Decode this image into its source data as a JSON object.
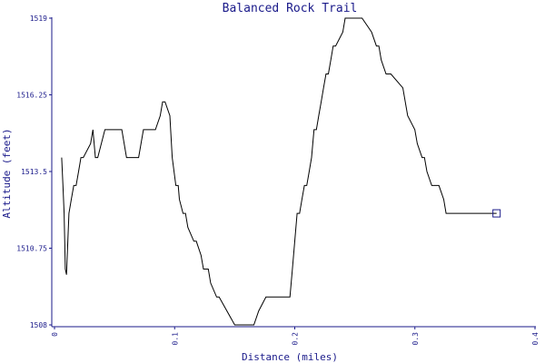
{
  "chart_data": {
    "type": "line",
    "title": "Balanced Rock Trail",
    "xlabel": "Distance (miles)",
    "ylabel": "Altitude (feet)",
    "xlim": [
      0,
      0.4
    ],
    "ylim": [
      1508,
      1519
    ],
    "x_ticks": [
      0,
      0.1,
      0.2,
      0.3,
      0.4
    ],
    "x_tick_labels": [
      "0",
      "0.1",
      "0.2",
      "0.3",
      "0.4"
    ],
    "y_ticks": [
      1508,
      1510.75,
      1513.5,
      1516.25,
      1519
    ],
    "y_tick_labels": [
      "1508",
      "1510.75",
      "1513.5",
      "1516.25",
      "1519"
    ],
    "grid": false,
    "line_color": "#000000",
    "axis_color": "#1a1a8a",
    "series": [
      {
        "x": [
          0.006,
          0.007,
          0.008,
          0.009,
          0.01,
          0.012,
          0.014,
          0.016,
          0.018,
          0.02,
          0.022,
          0.024,
          0.03,
          0.032,
          0.034,
          0.036,
          0.042,
          0.046,
          0.056,
          0.06,
          0.07,
          0.074,
          0.084,
          0.088,
          0.09,
          0.092,
          0.096,
          0.098,
          0.101,
          0.103,
          0.104,
          0.107,
          0.109,
          0.111,
          0.116,
          0.118,
          0.122,
          0.124,
          0.128,
          0.13,
          0.135,
          0.137,
          0.15,
          0.154,
          0.166,
          0.17,
          0.176,
          0.178,
          0.196,
          0.198,
          0.2,
          0.202,
          0.204,
          0.206,
          0.208,
          0.21,
          0.212,
          0.214,
          0.216,
          0.218,
          0.22,
          0.222,
          0.224,
          0.226,
          0.228,
          0.23,
          0.232,
          0.234,
          0.24,
          0.242,
          0.246,
          0.248,
          0.254,
          0.256,
          0.264,
          0.268,
          0.27,
          0.272,
          0.276,
          0.28,
          0.29,
          0.294,
          0.3,
          0.302,
          0.306,
          0.308,
          0.31,
          0.314,
          0.318,
          0.32,
          0.324,
          0.326,
          0.33,
          0.334,
          0.346,
          0.35,
          0.36,
          0.368
        ],
        "y": [
          1514,
          1513,
          1512,
          1510,
          1509.8,
          1512,
          1512.5,
          1513,
          1513,
          1513.5,
          1514,
          1514,
          1514.5,
          1515,
          1514,
          1514,
          1515,
          1515,
          1515,
          1514,
          1514,
          1515,
          1515,
          1515.5,
          1516,
          1516,
          1515.5,
          1514,
          1513,
          1513,
          1512.5,
          1512,
          1512,
          1511.5,
          1511,
          1511,
          1510.5,
          1510,
          1510,
          1509.5,
          1509,
          1509,
          1508,
          1508,
          1508,
          1508.5,
          1509,
          1509,
          1509,
          1510,
          1511,
          1512,
          1512,
          1512.5,
          1513,
          1513,
          1513.5,
          1514,
          1515,
          1515,
          1515.5,
          1516,
          1516.5,
          1517,
          1517,
          1517.5,
          1518,
          1518,
          1518.5,
          1519,
          1519,
          1519,
          1519,
          1519,
          1518.5,
          1518,
          1518,
          1517.5,
          1517,
          1517,
          1516.5,
          1515.5,
          1515,
          1514.5,
          1514,
          1514,
          1513.5,
          1513,
          1513,
          1513,
          1512.5,
          1512,
          1512,
          1512,
          1512,
          1512,
          1512,
          1512
        ]
      }
    ],
    "end_marker": {
      "x": 0.368,
      "y": 1512,
      "shape": "square"
    }
  }
}
